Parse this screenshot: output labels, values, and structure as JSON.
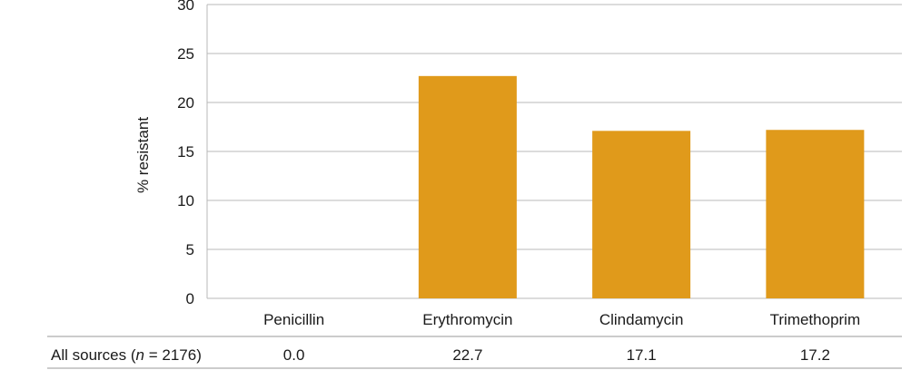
{
  "chart_data": {
    "type": "bar",
    "categories": [
      "Penicillin",
      "Erythromycin",
      "Clindamycin",
      "Trimethoprim"
    ],
    "values": [
      0.0,
      22.7,
      17.1,
      17.2
    ],
    "ylabel": "% resistant",
    "ylim": [
      0,
      30
    ],
    "yticks": [
      0,
      5,
      10,
      15,
      20,
      25,
      30
    ],
    "grid": true,
    "bar_color": "#E09A1B",
    "table": {
      "row_label_prefix": "All sources (",
      "row_label_n": "n",
      "row_label_suffix": " = 2176)",
      "cells": [
        "0.0",
        "22.7",
        "17.1",
        "17.2"
      ]
    }
  }
}
